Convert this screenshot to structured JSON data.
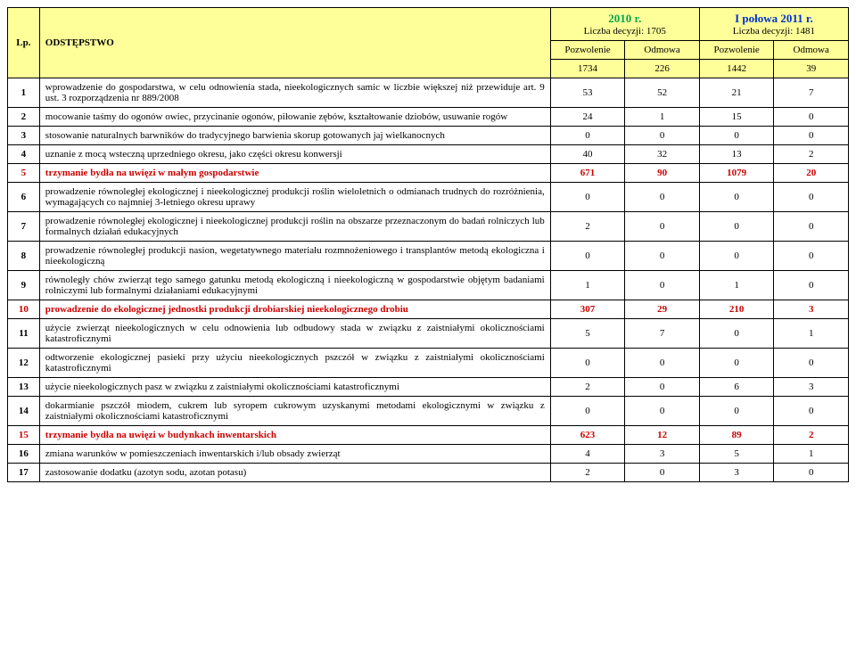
{
  "headers": {
    "lp": "Lp.",
    "odstep": "ODSTĘPSTWO",
    "y2010_title": "2010 r.",
    "y2010_sub": "Liczba decyzji: 1705",
    "y2011_title": "I połowa 2011 r.",
    "y2011_sub": "Liczba decyzji: 1481",
    "pozw": "Pozwolenie",
    "odm": "Odmowa"
  },
  "totals": {
    "p2010": "1734",
    "o2010": "226",
    "p2011": "1442",
    "o2011": "39"
  },
  "rows": [
    {
      "lp": "1",
      "desc": "wprowadzenie do gospodarstwa, w celu odnowienia stada, nieekologicznych samic w liczbie większej niż przewiduje art. 9 ust. 3 rozporządzenia nr 889/2008",
      "p2010": "53",
      "o2010": "52",
      "p2011": "21",
      "o2011": "7",
      "hl": false
    },
    {
      "lp": "2",
      "desc": "mocowanie taśmy do ogonów owiec, przycinanie ogonów, piłowanie zębów, kształtowanie dziobów, usuwanie rogów",
      "p2010": "24",
      "o2010": "1",
      "p2011": "15",
      "o2011": "0",
      "hl": false
    },
    {
      "lp": "3",
      "desc": "stosowanie naturalnych barwników do tradycyjnego barwienia skorup gotowanych jaj wielkanocnych",
      "p2010": "0",
      "o2010": "0",
      "p2011": "0",
      "o2011": "0",
      "hl": false
    },
    {
      "lp": "4",
      "desc": "uznanie z mocą wsteczną uprzedniego okresu, jako części okresu konwersji",
      "p2010": "40",
      "o2010": "32",
      "p2011": "13",
      "o2011": "2",
      "hl": false
    },
    {
      "lp": "5",
      "desc": "trzymanie bydła na uwięzi w małym gospodarstwie",
      "p2010": "671",
      "o2010": "90",
      "p2011": "1079",
      "o2011": "20",
      "hl": true
    },
    {
      "lp": "6",
      "desc": "prowadzenie równoległej ekologicznej i nieekologicznej produkcji roślin wieloletnich o odmianach trudnych do rozróżnienia, wymagających co najmniej 3-letniego okresu uprawy",
      "p2010": "0",
      "o2010": "0",
      "p2011": "0",
      "o2011": "0",
      "hl": false
    },
    {
      "lp": "7",
      "desc": "prowadzenie równoległej ekologicznej i nieekologicznej produkcji roślin na obszarze przeznaczonym do badań rolniczych lub formalnych działań edukacyjnych",
      "p2010": "2",
      "o2010": "0",
      "p2011": "0",
      "o2011": "0",
      "hl": false
    },
    {
      "lp": "8",
      "desc": "prowadzenie równoległej produkcji nasion, wegetatywnego materiału rozmnożeniowego i transplantów metodą ekologiczna i nieekologiczną",
      "p2010": "0",
      "o2010": "0",
      "p2011": "0",
      "o2011": "0",
      "hl": false
    },
    {
      "lp": "9",
      "desc": "równoległy chów zwierząt tego samego gatunku metodą ekologiczną i nieekologiczną w gospodarstwie objętym badaniami rolniczymi lub formalnymi działaniami edukacyjnymi",
      "p2010": "1",
      "o2010": "0",
      "p2011": "1",
      "o2011": "0",
      "hl": false
    },
    {
      "lp": "10",
      "desc": "prowadzenie do ekologicznej jednostki produkcji drobiarskiej nieekologicznego drobiu",
      "p2010": "307",
      "o2010": "29",
      "p2011": "210",
      "o2011": "3",
      "hl": true
    },
    {
      "lp": "11",
      "desc": "użycie zwierząt nieekologicznych w celu odnowienia lub odbudowy stada w związku z zaistniałymi okolicznościami katastroficznymi",
      "p2010": "5",
      "o2010": "7",
      "p2011": "0",
      "o2011": "1",
      "hl": false
    },
    {
      "lp": "12",
      "desc": "odtworzenie ekologicznej pasieki przy użyciu nieekologicznych pszczół w związku z zaistniałymi okolicznościami katastroficznymi",
      "p2010": "0",
      "o2010": "0",
      "p2011": "0",
      "o2011": "0",
      "hl": false
    },
    {
      "lp": "13",
      "desc": "użycie nieekologicznych pasz w związku z zaistniałymi okolicznościami katastroficznymi",
      "p2010": "2",
      "o2010": "0",
      "p2011": "6",
      "o2011": "3",
      "hl": false
    },
    {
      "lp": "14",
      "desc": "dokarmianie pszczół miodem, cukrem lub syropem cukrowym uzyskanymi metodami ekologicznymi w związku z zaistniałymi okolicznościami katastroficznymi",
      "p2010": "0",
      "o2010": "0",
      "p2011": "0",
      "o2011": "0",
      "hl": false
    },
    {
      "lp": "15",
      "desc": "trzymanie bydła na uwięzi w budynkach inwentarskich",
      "p2010": "623",
      "o2010": "12",
      "p2011": "89",
      "o2011": "2",
      "hl": true
    },
    {
      "lp": "16",
      "desc": "zmiana warunków w pomieszczeniach inwentarskich i/lub obsady zwierząt",
      "p2010": "4",
      "o2010": "3",
      "p2011": "5",
      "o2011": "1",
      "hl": false
    },
    {
      "lp": "17",
      "desc": "zastosowanie dodatku (azotyn sodu, azotan potasu)",
      "p2010": "2",
      "o2010": "0",
      "p2011": "3",
      "o2011": "0",
      "hl": false
    }
  ]
}
